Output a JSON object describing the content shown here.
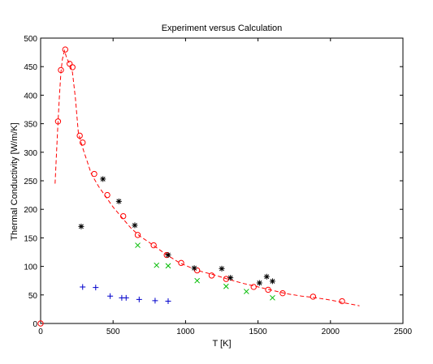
{
  "chart_data": {
    "type": "scatter",
    "title": "Experiment versus Calculation",
    "xlabel": "T [K]",
    "ylabel": "Thermal Conductivity [W/m/K]",
    "xlim": [
      0,
      2500
    ],
    "ylim": [
      0,
      500
    ],
    "xticks": [
      0,
      500,
      1000,
      1500,
      2000,
      2500
    ],
    "yticks": [
      0,
      50,
      100,
      150,
      200,
      250,
      300,
      350,
      400,
      450,
      500
    ],
    "grid": false,
    "legend": "none",
    "series": [
      {
        "kind": "line",
        "style": "dashed",
        "color": "#ff0000",
        "points": [
          [
            100,
            245
          ],
          [
            110,
            300
          ],
          [
            120,
            352
          ],
          [
            130,
            400
          ],
          [
            140,
            440
          ],
          [
            150,
            463
          ],
          [
            165,
            478
          ],
          [
            180,
            465
          ],
          [
            200,
            455
          ],
          [
            220,
            440
          ],
          [
            240,
            395
          ],
          [
            260,
            335
          ],
          [
            280,
            316
          ],
          [
            300,
            300
          ],
          [
            320,
            285
          ],
          [
            350,
            262
          ],
          [
            400,
            240
          ],
          [
            450,
            222
          ],
          [
            500,
            204
          ],
          [
            560,
            186
          ],
          [
            620,
            168
          ],
          [
            680,
            154
          ],
          [
            760,
            140
          ],
          [
            860,
            122
          ],
          [
            960,
            106
          ],
          [
            1080,
            93
          ],
          [
            1200,
            85
          ],
          [
            1300,
            77
          ],
          [
            1400,
            70
          ],
          [
            1500,
            64
          ],
          [
            1600,
            58
          ],
          [
            1700,
            52
          ],
          [
            1800,
            48
          ],
          [
            1900,
            45
          ],
          [
            2000,
            41
          ],
          [
            2100,
            36
          ],
          [
            2200,
            31
          ]
        ]
      },
      {
        "kind": "marker",
        "marker": "circle",
        "color": "#ff0000",
        "points": [
          [
            0,
            0
          ],
          [
            120,
            354
          ],
          [
            140,
            444
          ],
          [
            170,
            480
          ],
          [
            200,
            455
          ],
          [
            220,
            449
          ],
          [
            270,
            329
          ],
          [
            290,
            317
          ],
          [
            370,
            262
          ],
          [
            460,
            225
          ],
          [
            570,
            188
          ],
          [
            670,
            155
          ],
          [
            780,
            137
          ],
          [
            870,
            120
          ],
          [
            970,
            106
          ],
          [
            1080,
            93
          ],
          [
            1180,
            84
          ],
          [
            1280,
            78
          ],
          [
            1470,
            64
          ],
          [
            1570,
            59
          ],
          [
            1670,
            53
          ],
          [
            1880,
            47
          ],
          [
            2080,
            39
          ]
        ]
      },
      {
        "kind": "marker",
        "marker": "asterisk",
        "color": "#000000",
        "points": [
          [
            280,
            170
          ],
          [
            430,
            253
          ],
          [
            540,
            214
          ],
          [
            650,
            172
          ],
          [
            880,
            120
          ],
          [
            1060,
            97
          ],
          [
            1250,
            96
          ],
          [
            1310,
            80
          ],
          [
            1510,
            71
          ],
          [
            1560,
            82
          ],
          [
            1600,
            74
          ]
        ]
      },
      {
        "kind": "marker",
        "marker": "x",
        "color": "#00bb00",
        "points": [
          [
            670,
            137
          ],
          [
            800,
            102
          ],
          [
            880,
            101
          ],
          [
            1080,
            75
          ],
          [
            1280,
            65
          ],
          [
            1420,
            56
          ],
          [
            1600,
            45
          ]
        ]
      },
      {
        "kind": "marker",
        "marker": "plus",
        "color": "#0000cc",
        "points": [
          [
            290,
            64
          ],
          [
            380,
            63
          ],
          [
            480,
            48
          ],
          [
            560,
            45
          ],
          [
            590,
            45
          ],
          [
            680,
            42
          ],
          [
            790,
            40
          ],
          [
            880,
            39
          ]
        ]
      }
    ]
  }
}
